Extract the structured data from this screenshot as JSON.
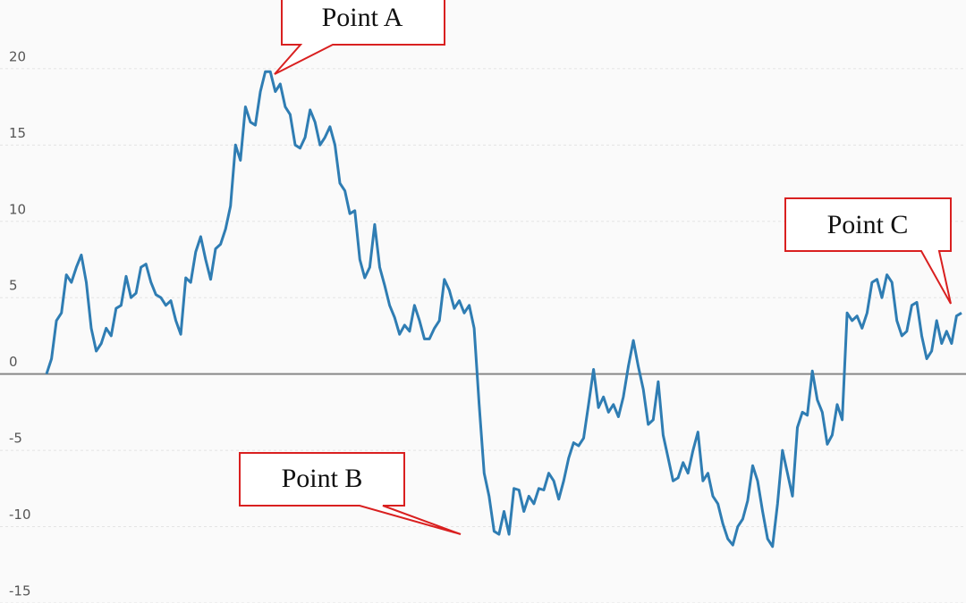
{
  "chart_data": {
    "type": "line",
    "annotations": [
      "Point A",
      "Point B",
      "Point C"
    ],
    "ylim": [
      -15,
      24.5
    ],
    "yticks": [
      -15,
      -10,
      -5,
      0,
      5,
      10,
      15,
      20
    ],
    "grid": true,
    "series": [
      {
        "color": "#2f7db3",
        "values": [
          0,
          1,
          3.5,
          4,
          6.5,
          6,
          7,
          7.8,
          6,
          3,
          1.5,
          2,
          3,
          2.5,
          4.3,
          4.5,
          6.4,
          5,
          5.3,
          7,
          7.2,
          6,
          5.2,
          5,
          4.5,
          4.8,
          3.5,
          2.6,
          6.3,
          6,
          8,
          9,
          7.5,
          6.2,
          8.2,
          8.5,
          9.5,
          11,
          15,
          14,
          17.5,
          16.5,
          16.3,
          18.5,
          19.8,
          19.8,
          18.5,
          19,
          17.5,
          17,
          15,
          14.8,
          15.5,
          17.3,
          16.5,
          15,
          15.5,
          16.2,
          15,
          12.5,
          12,
          10.5,
          10.7,
          7.5,
          6.3,
          7,
          9.8,
          7,
          5.8,
          4.5,
          3.7,
          2.6,
          3.2,
          2.8,
          4.5,
          3.5,
          2.3,
          2.3,
          3,
          3.5,
          6.2,
          5.5,
          4.3,
          4.8,
          4,
          4.5,
          3,
          -2,
          -6.5,
          -8,
          -10.3,
          -10.5,
          -9,
          -10.5,
          -7.5,
          -7.6,
          -9,
          -8,
          -8.5,
          -7.5,
          -7.6,
          -6.5,
          -7,
          -8.2,
          -7,
          -5.5,
          -4.5,
          -4.7,
          -4.2,
          -2,
          0.3,
          -2.2,
          -1.5,
          -2.5,
          -2,
          -2.8,
          -1.5,
          0.5,
          2.2,
          0.5,
          -1,
          -3.3,
          -3,
          -0.5,
          -4,
          -5.5,
          -7,
          -6.8,
          -5.8,
          -6.5,
          -5,
          -3.8,
          -7,
          -6.5,
          -8,
          -8.5,
          -9.8,
          -10.8,
          -11.2,
          -10,
          -9.5,
          -8.3,
          -6,
          -7,
          -9,
          -10.8,
          -11.3,
          -8.5,
          -5,
          -6.5,
          -8,
          -3.5,
          -2.5,
          -2.7,
          0.2,
          -1.7,
          -2.5,
          -4.6,
          -4,
          -2,
          -3,
          4,
          3.5,
          3.8,
          3,
          4,
          6,
          6.2,
          5,
          6.5,
          6,
          3.5,
          2.5,
          2.8,
          4.5,
          4.7,
          2.5,
          1,
          1.5,
          3.5,
          2,
          2.8,
          2,
          3.8,
          4
        ]
      }
    ]
  }
}
